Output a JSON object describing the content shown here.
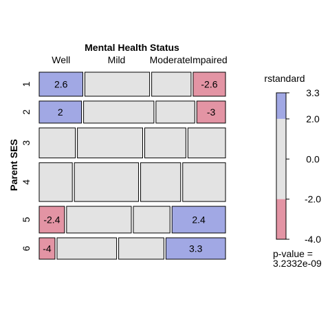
{
  "chart_data": {
    "type": "mosaic",
    "title": "Mental Health Status",
    "ylabel": "Parent SES",
    "columns": [
      "Well",
      "Mild",
      "Moderate",
      "Impaired"
    ],
    "rows": [
      "1",
      "2",
      "3",
      "4",
      "5",
      "6"
    ],
    "column_widths": [
      62,
      90,
      56,
      48
    ],
    "row_heights": [
      36,
      33,
      45,
      58,
      40,
      32
    ],
    "cell_widths": [
      [
        62,
        92,
        56,
        46
      ],
      [
        59,
        98,
        54,
        40
      ],
      [
        51,
        92,
        58,
        53
      ],
      [
        48,
        93,
        58,
        62
      ],
      [
        36,
        92,
        52,
        76
      ],
      [
        22,
        83,
        63,
        83
      ]
    ],
    "residuals": [
      [
        2.6,
        null,
        null,
        -2.6
      ],
      [
        2,
        null,
        null,
        -3
      ],
      [
        null,
        null,
        null,
        null
      ],
      [
        null,
        null,
        null,
        null
      ],
      [
        -2.4,
        null,
        null,
        2.4
      ],
      [
        -4,
        null,
        null,
        3.3
      ]
    ],
    "legend": {
      "title": "rstandard",
      "ticks": [
        "3.3",
        "2.0",
        "0.0",
        "-2.0",
        "-4.0"
      ],
      "range": [
        -4.0,
        3.3
      ],
      "bands": [
        {
          "from": 2.0,
          "to": 3.3,
          "color": "#a1a8e4"
        },
        {
          "from": -2.0,
          "to": 2.0,
          "color": "#e3e3e3"
        },
        {
          "from": -4.0,
          "to": -2.0,
          "color": "#e394a4"
        }
      ],
      "pvalue_label": "p-value =",
      "pvalue": "3.2332e-09"
    },
    "colors": {
      "positive": "#a1a8e4",
      "neutral": "#e3e3e3",
      "negative": "#e394a4",
      "border": "#000000"
    }
  }
}
